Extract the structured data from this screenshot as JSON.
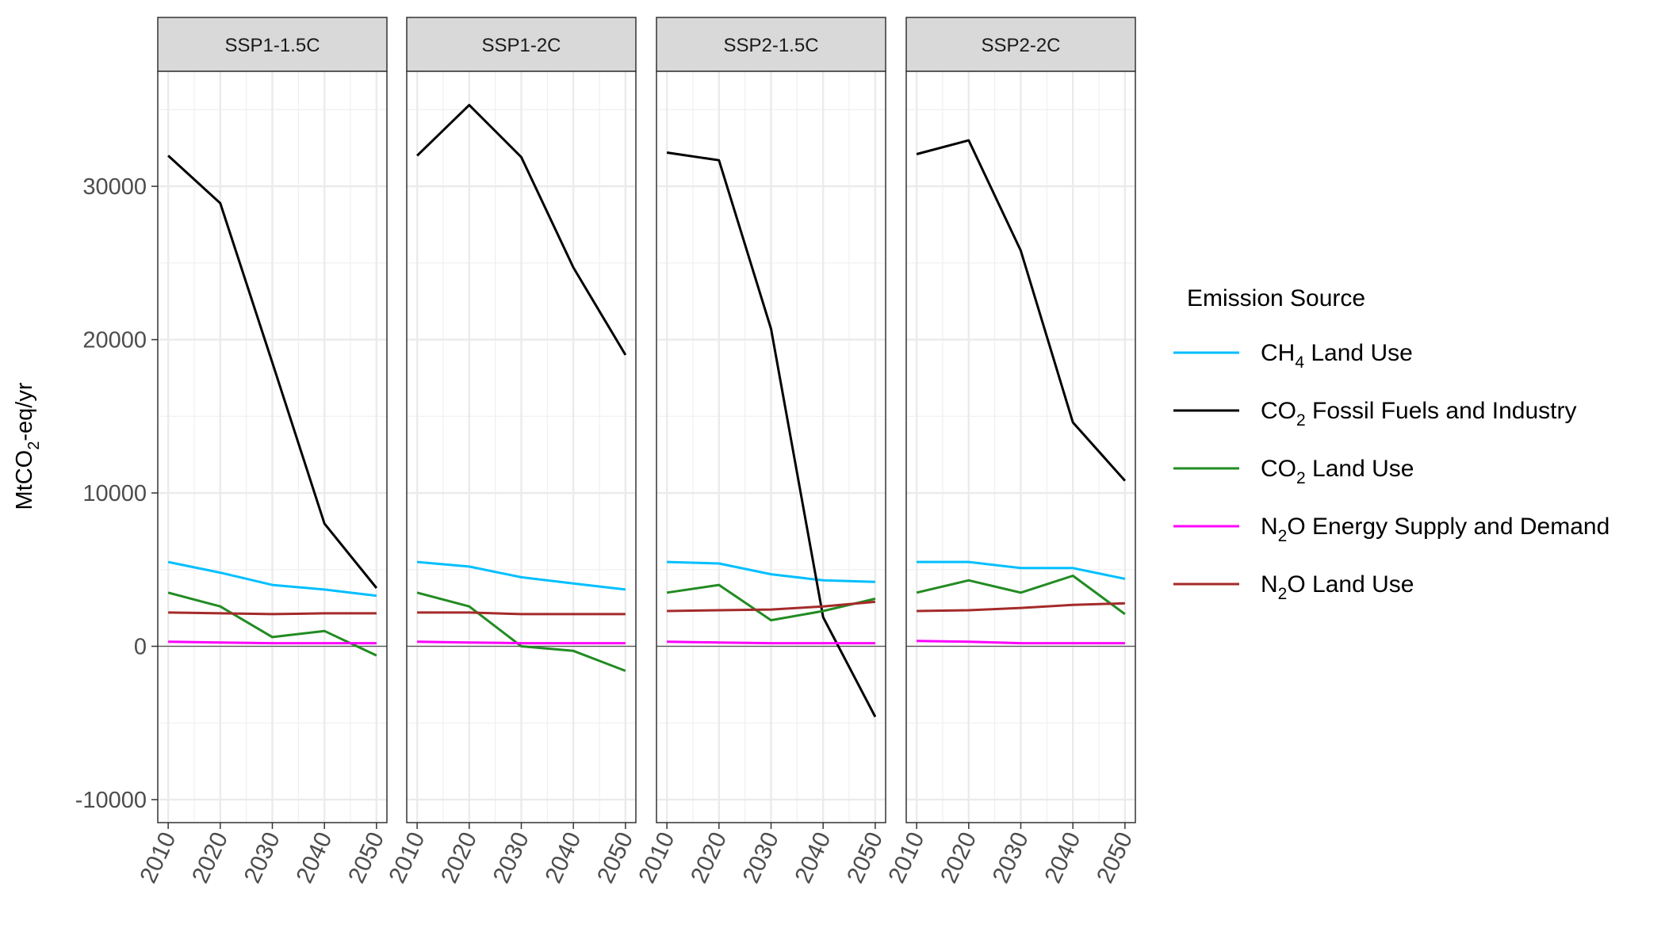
{
  "chart_data": {
    "type": "line",
    "facets": [
      "SSP1-1.5C",
      "SSP1-2C",
      "SSP2-1.5C",
      "SSP2-2C"
    ],
    "ylabel": {
      "pre": "MtCO",
      "sub": "2",
      "post": "-eq/yr"
    },
    "xlabel": "",
    "x": [
      2010,
      2020,
      2030,
      2040,
      2050
    ],
    "x_ticks": [
      "2010",
      "2020",
      "2030",
      "2040",
      "2050"
    ],
    "ylim": [
      -11500,
      37500
    ],
    "y_ticks": [
      -10000,
      0,
      10000,
      20000,
      30000
    ],
    "y_tick_labels": [
      "-10000",
      "0",
      "10000",
      "20000",
      "30000"
    ],
    "grid": true,
    "zero_line": true,
    "legend": {
      "title": "Emission Source",
      "position": "right"
    },
    "series": [
      {
        "name": "CH4 Land Use",
        "label": {
          "pre": "CH",
          "sub": "4",
          "post": " Land Use"
        },
        "color": "#00BFFF"
      },
      {
        "name": "CO2 Fossil Fuels and Industry",
        "label": {
          "pre": "CO",
          "sub": "2",
          "post": " Fossil Fuels and Industry"
        },
        "color": "#000000"
      },
      {
        "name": "CO2 Land Use",
        "label": {
          "pre": "CO",
          "sub": "2",
          "post": " Land Use"
        },
        "color": "#228B22"
      },
      {
        "name": "N2O Energy Supply and Demand",
        "label": {
          "pre": "N",
          "sub": "2",
          "post": "O Energy Supply and Demand"
        },
        "color": "#FF00FF"
      },
      {
        "name": "N2O Land Use",
        "label": {
          "pre": "N",
          "sub": "2",
          "post": "O Land Use"
        },
        "color": "#A52A2A"
      }
    ],
    "values": {
      "SSP1-1.5C": {
        "CH4 Land Use": [
          5500,
          4800,
          4000,
          3700,
          3300
        ],
        "CO2 Fossil Fuels and Industry": [
          32000,
          28900,
          18500,
          8000,
          3800
        ],
        "CO2 Land Use": [
          3500,
          2600,
          600,
          1000,
          -600
        ],
        "N2O Energy Supply and Demand": [
          300,
          250,
          200,
          200,
          200
        ],
        "N2O Land Use": [
          2200,
          2150,
          2100,
          2150,
          2150
        ]
      },
      "SSP1-2C": {
        "CH4 Land Use": [
          5500,
          5200,
          4500,
          4100,
          3700
        ],
        "CO2 Fossil Fuels and Industry": [
          32000,
          35300,
          31900,
          24700,
          19000
        ],
        "CO2 Land Use": [
          3500,
          2600,
          0,
          -300,
          -1600
        ],
        "N2O Energy Supply and Demand": [
          300,
          250,
          200,
          200,
          200
        ],
        "N2O Land Use": [
          2200,
          2200,
          2100,
          2100,
          2100
        ]
      },
      "SSP2-1.5C": {
        "CH4 Land Use": [
          5500,
          5400,
          4700,
          4300,
          4200
        ],
        "CO2 Fossil Fuels and Industry": [
          32200,
          31700,
          20700,
          1900,
          -4600
        ],
        "CO2 Land Use": [
          3500,
          4000,
          1700,
          2300,
          3100
        ],
        "N2O Energy Supply and Demand": [
          300,
          250,
          200,
          200,
          200
        ],
        "N2O Land Use": [
          2300,
          2350,
          2400,
          2600,
          2900
        ]
      },
      "SSP2-2C": {
        "CH4 Land Use": [
          5500,
          5500,
          5100,
          5100,
          4400
        ],
        "CO2 Fossil Fuels and Industry": [
          32100,
          33000,
          25800,
          14600,
          10800
        ],
        "CO2 Land Use": [
          3500,
          4300,
          3500,
          4600,
          2100
        ],
        "N2O Energy Supply and Demand": [
          350,
          300,
          200,
          200,
          200
        ],
        "N2O Land Use": [
          2300,
          2350,
          2500,
          2700,
          2800
        ]
      }
    }
  }
}
